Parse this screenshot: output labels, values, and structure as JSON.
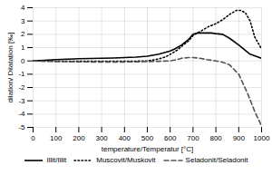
{
  "chart_data": {
    "type": "line",
    "title": "",
    "xlabel": "temperature/Temperatur [°C]",
    "ylabel": "dilation/ Dilatation [‰]",
    "xlim": [
      0,
      1000
    ],
    "ylim": [
      -5,
      4
    ],
    "xticks": [
      0,
      100,
      200,
      300,
      400,
      500,
      600,
      700,
      800,
      900,
      1000
    ],
    "yticks": [
      -5,
      -4,
      -3,
      -2,
      -1,
      0,
      1,
      2,
      3,
      4
    ],
    "grid": true,
    "legend": "bottom",
    "series": [
      {
        "name": "Illit/Illit",
        "color": "#000000",
        "line_style": "solid",
        "x": [
          0,
          50,
          100,
          150,
          200,
          250,
          300,
          350,
          400,
          450,
          500,
          550,
          600,
          620,
          650,
          680,
          700,
          720,
          750,
          780,
          800,
          830,
          860,
          900,
          950,
          1000
        ],
        "values": [
          0,
          0.05,
          0.1,
          0.13,
          0.16,
          0.18,
          0.2,
          0.22,
          0.25,
          0.28,
          0.35,
          0.5,
          0.75,
          0.9,
          1.2,
          1.6,
          2.0,
          2.1,
          2.1,
          2.1,
          2.05,
          2.0,
          1.7,
          1.2,
          0.5,
          0.2
        ]
      },
      {
        "name": "Muscovit/Muskovit",
        "color": "#000000",
        "line_style": "dotted",
        "x": [
          0,
          50,
          100,
          150,
          200,
          250,
          300,
          350,
          400,
          450,
          500,
          520,
          550,
          580,
          600,
          630,
          650,
          680,
          700,
          730,
          750,
          770,
          800,
          830,
          860,
          890,
          910,
          930,
          950,
          970,
          1000
        ],
        "values": [
          0,
          0.0,
          -0.02,
          -0.03,
          -0.03,
          -0.03,
          -0.03,
          -0.02,
          -0.02,
          -0.02,
          0.0,
          0.05,
          0.15,
          0.3,
          0.5,
          0.8,
          1.1,
          1.5,
          1.9,
          2.2,
          2.4,
          2.6,
          2.8,
          3.1,
          3.5,
          3.8,
          3.8,
          3.6,
          3.0,
          1.8,
          0.9
        ]
      },
      {
        "name": "Seladonit/Seladonit",
        "color": "#555555",
        "line_style": "dashed",
        "x": [
          0,
          50,
          100,
          150,
          200,
          250,
          300,
          350,
          400,
          450,
          500,
          550,
          600,
          630,
          650,
          680,
          700,
          730,
          760,
          800,
          830,
          860,
          900,
          940,
          970,
          1000
        ],
        "values": [
          0,
          -0.03,
          -0.05,
          -0.06,
          -0.07,
          -0.08,
          -0.08,
          -0.08,
          -0.08,
          -0.07,
          -0.05,
          -0.03,
          0.0,
          0.1,
          0.2,
          0.25,
          0.25,
          0.2,
          0.1,
          0.0,
          -0.1,
          -0.3,
          -1.0,
          -2.5,
          -3.8,
          -4.9
        ]
      }
    ]
  }
}
